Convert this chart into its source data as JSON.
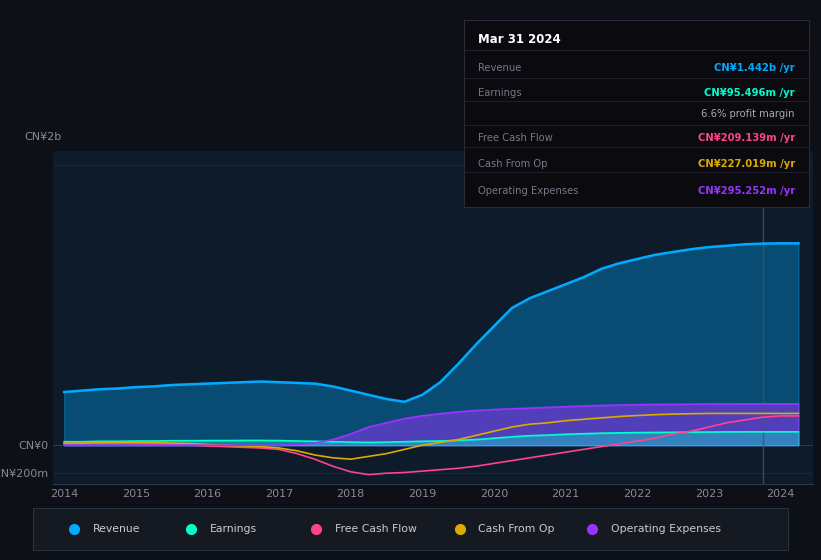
{
  "background_color": "#0d1117",
  "plot_bg_color": "#0d1b2a",
  "colors": {
    "revenue": "#00aaff",
    "earnings": "#00ffcc",
    "free_cash_flow": "#ff4488",
    "cash_from_op": "#ddaa00",
    "operating_expenses": "#9933ff"
  },
  "legend": [
    {
      "label": "Revenue",
      "color": "#00aaff"
    },
    {
      "label": "Earnings",
      "color": "#00ffcc"
    },
    {
      "label": "Free Cash Flow",
      "color": "#ff4488"
    },
    {
      "label": "Cash From Op",
      "color": "#ddaa00"
    },
    {
      "label": "Operating Expenses",
      "color": "#9933ff"
    }
  ],
  "tooltip": {
    "date": "Mar 31 2024",
    "rows": [
      {
        "label": "Revenue",
        "value": "CN¥1.442b /yr",
        "color": "#00aaff"
      },
      {
        "label": "Earnings",
        "value": "CN¥95.496m /yr",
        "color": "#00ffcc"
      },
      {
        "label": "",
        "value": "6.6% profit margin",
        "color": "#aaaaaa"
      },
      {
        "label": "Free Cash Flow",
        "value": "CN¥209.139m /yr",
        "color": "#ff4488"
      },
      {
        "label": "Cash From Op",
        "value": "CN¥227.019m /yr",
        "color": "#ddaa00"
      },
      {
        "label": "Operating Expenses",
        "value": "CN¥295.252m /yr",
        "color": "#9933ff"
      }
    ]
  },
  "xtick_years": [
    2014,
    2015,
    2016,
    2017,
    2018,
    2019,
    2020,
    2021,
    2022,
    2023,
    2024
  ],
  "vline_x": 2023.75
}
